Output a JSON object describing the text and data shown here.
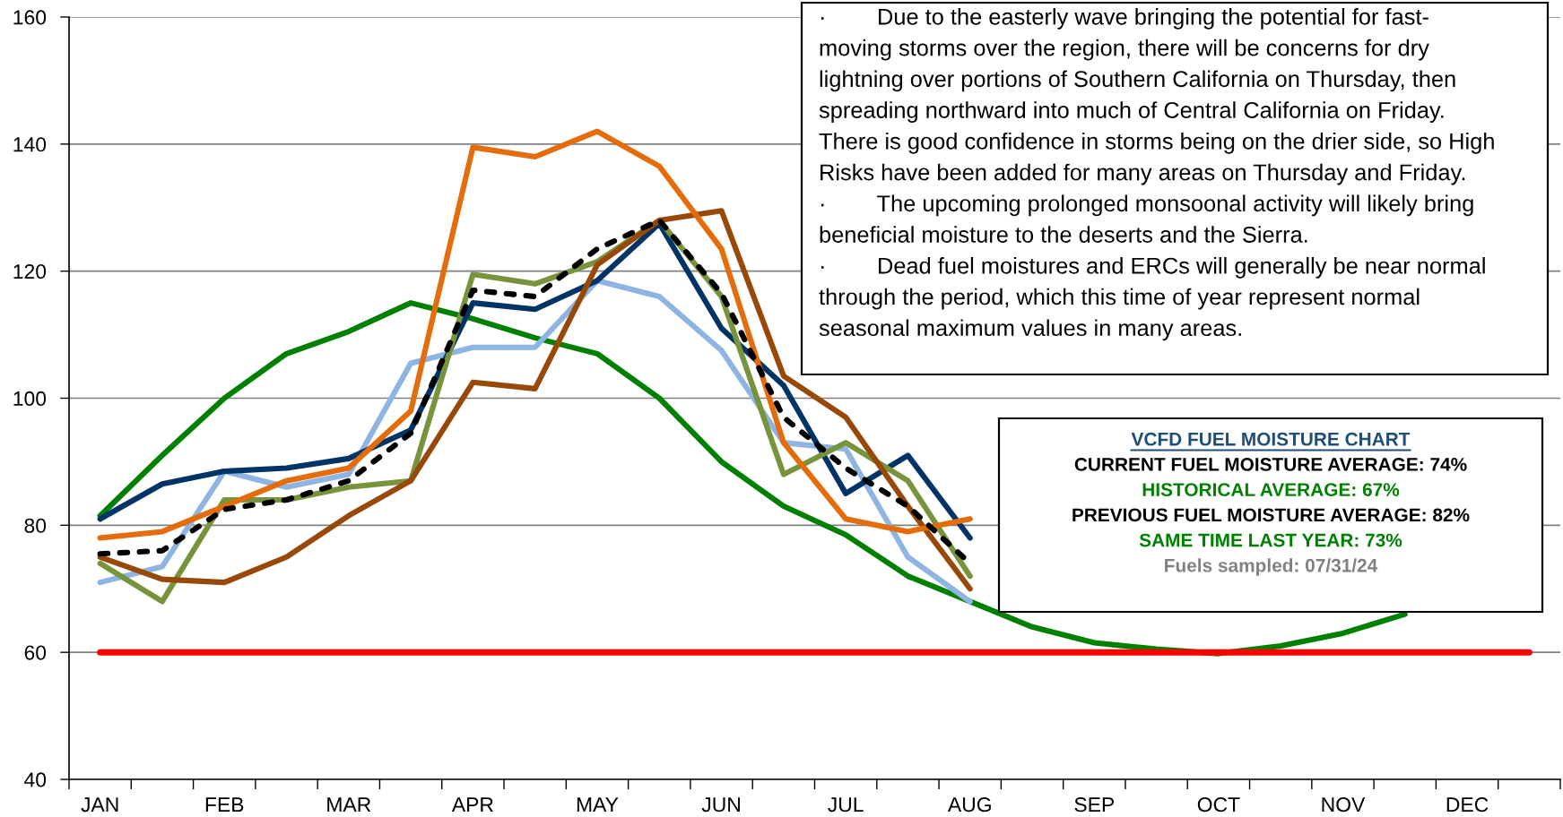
{
  "chart_data": {
    "type": "line",
    "categories": [
      "JAN",
      null,
      "FEB",
      null,
      "MAR",
      null,
      "APR",
      null,
      "MAY",
      null,
      "JUN",
      null,
      "JUL",
      null,
      "AUG",
      null,
      "SEP",
      null,
      "OCT",
      null,
      "NOV",
      null,
      "DEC",
      null
    ],
    "ylim": [
      40,
      160
    ],
    "yticks": [
      40,
      60,
      80,
      100,
      120,
      140,
      160
    ],
    "grid": "y",
    "series": [
      {
        "color": "#008000",
        "values": [
          81.5,
          91,
          100,
          107,
          110.5,
          115,
          112.5,
          109.5,
          107,
          100,
          90,
          83,
          78.5,
          72,
          68,
          64,
          61.5,
          60.5,
          59.8,
          61,
          63,
          66,
          null,
          null
        ]
      },
      {
        "color": "#8db4e2",
        "values": [
          71,
          73.5,
          88.5,
          86,
          88,
          105.5,
          108,
          108,
          118.5,
          116,
          107.5,
          93,
          92,
          75,
          68,
          null,
          null,
          null,
          null,
          null,
          null,
          null,
          null,
          null
        ]
      },
      {
        "color": "#003366",
        "values": [
          81,
          86.5,
          88.5,
          89,
          90.5,
          95,
          115,
          114,
          118.5,
          127.5,
          111,
          102,
          85,
          91,
          78,
          null,
          null,
          null,
          null,
          null,
          null,
          null,
          null,
          null
        ]
      },
      {
        "color": "#77933c",
        "values": [
          74,
          68,
          84,
          84,
          86,
          87,
          119.5,
          118,
          121.5,
          128,
          116,
          88,
          93,
          87,
          72,
          null,
          null,
          null,
          null,
          null,
          null,
          null,
          null,
          null
        ]
      },
      {
        "color": "#984807",
        "values": [
          75,
          71.5,
          71,
          75,
          81.5,
          87,
          102.5,
          101.5,
          121,
          128,
          129.5,
          103.5,
          97,
          83,
          70,
          null,
          null,
          null,
          null,
          null,
          null,
          null,
          null,
          null
        ]
      },
      {
        "color": "#e46c0a",
        "values": [
          78,
          79,
          83,
          87,
          89,
          98,
          139.5,
          138,
          142,
          136.5,
          123.5,
          93,
          81,
          79,
          81,
          null,
          null,
          null,
          null,
          null,
          null,
          null,
          null,
          null
        ]
      },
      {
        "color": "#000000",
        "line_style": "dashed",
        "values": [
          75.5,
          76,
          82.5,
          84,
          87,
          94.5,
          117,
          116,
          123.5,
          128,
          116.5,
          97,
          89,
          83,
          74,
          null,
          null,
          null,
          null,
          null,
          null,
          null,
          null,
          null
        ]
      }
    ],
    "ref_lines": [
      {
        "axis": "y",
        "value": 60,
        "color": "#ff0000"
      }
    ],
    "annotations": [
      "·        Due to the easterly wave bringing the potential for fast-\nmoving storms over the region, there will be concerns for dry\nlightning over portions of Southern California on Thursday, then\nspreading northward into much of Central California on Friday.\nThere is good confidence in storms being on the drier side, so High\nRisks have been added for many areas on Thursday and Friday.\n·        The upcoming prolonged monsoonal activity will likely bring\nbeneficial moisture to the deserts and the Sierra.\n·        Dead fuel moistures and ERCs will generally be near normal\nthrough the period, which this time of year represent normal\nseasonal maximum values in many areas.",
      "VCFD FUEL MOISTURE CHART",
      "CURRENT FUEL MOISTURE AVERAGE: 74%",
      "HISTORICAL AVERAGE: 67%",
      "PREVIOUS FUEL MOISTURE AVERAGE: 82%",
      "SAME TIME LAST YEAR: 73%",
      "Fuels sampled: 07/31/24"
    ]
  }
}
